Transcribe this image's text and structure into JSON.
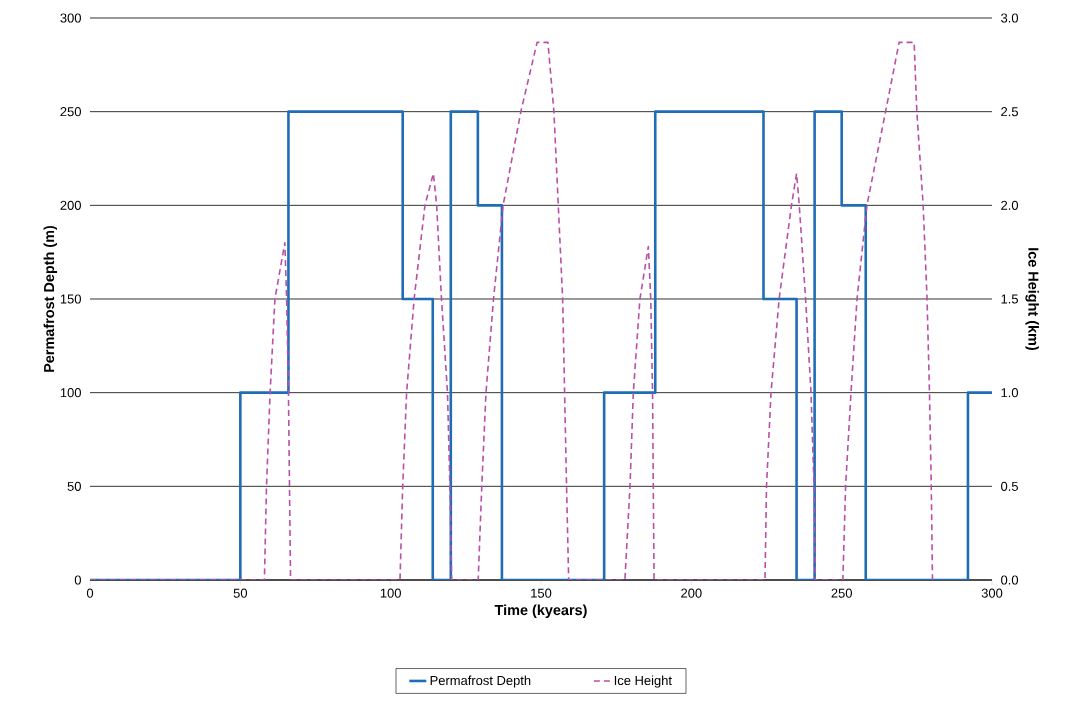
{
  "chart_data": {
    "type": "line",
    "xlabel": "Time (kyears)",
    "ylabel": "Permafrost Depth (m)",
    "y2label": "Ice Height (km)",
    "xlim": [
      0,
      300
    ],
    "xticks": [
      0,
      50,
      100,
      150,
      200,
      250,
      300
    ],
    "ylim": [
      0,
      300
    ],
    "yticks": [
      0,
      50,
      100,
      150,
      200,
      250,
      300
    ],
    "y2lim": [
      0,
      3
    ],
    "y2ticks": [
      {
        "value": 0,
        "label": "0.0"
      },
      {
        "value": 0.5,
        "label": "0.5"
      },
      {
        "value": 1,
        "label": "1.0"
      },
      {
        "value": 1.5,
        "label": "1.5"
      },
      {
        "value": 2,
        "label": "2.0"
      },
      {
        "value": 2.5,
        "label": "2.5"
      },
      {
        "value": 3,
        "label": "3.0"
      }
    ],
    "grid": "y",
    "legend": "bottom",
    "marker": "none",
    "series": [
      {
        "name": "Permafrost Depth",
        "type": "step",
        "color": "#1f6db5",
        "line_style": "solid",
        "x": [
          0,
          50,
          66,
          104,
          114,
          120,
          129,
          137,
          171,
          188,
          224,
          235,
          241,
          250,
          258,
          292,
          300
        ],
        "values": [
          0,
          100,
          250,
          150,
          0,
          250,
          200,
          0,
          100,
          250,
          150,
          0,
          250,
          200,
          0,
          100,
          100
        ]
      },
      {
        "name": "Ice Height",
        "axis": "y2",
        "color": "#b94fa6",
        "line_style": "dashed",
        "x": [
          0,
          58,
          58.7,
          59.9,
          61.5,
          64.8,
          65.4,
          66,
          66.7,
          103.1,
          104,
          105.3,
          107.8,
          111.4,
          114.2,
          115.3,
          116.9,
          118.9,
          119.7,
          120.3,
          129.1,
          130.3,
          131.7,
          134.2,
          137.4,
          143.3,
          148.7,
          152.3,
          154.3,
          157.2,
          158.5,
          159.2,
          177.9,
          179.6,
          180.7,
          182.9,
          185.7,
          186.5,
          187.1,
          187.6,
          224.5,
          225,
          226.5,
          229.2,
          233.3,
          235,
          235.9,
          238,
          239.8,
          240.8,
          241.2,
          250.4,
          251.3,
          253.1,
          255.1,
          258.4,
          264.6,
          269.1,
          274.1,
          275,
          277.1,
          278.4,
          279.2,
          279.8,
          280.2
        ],
        "values": [
          0,
          0,
          0.5,
          1.0,
          1.5,
          1.8,
          1.5,
          1.0,
          0,
          0,
          0.5,
          1.0,
          1.5,
          2.0,
          2.17,
          2.0,
          1.5,
          1.0,
          0.5,
          0,
          0,
          0.5,
          1.0,
          1.5,
          2.0,
          2.5,
          2.87,
          2.87,
          2.5,
          1.5,
          0.5,
          0,
          0,
          0.5,
          1.0,
          1.5,
          1.78,
          1.5,
          1.0,
          0,
          0,
          0.5,
          1.0,
          1.5,
          2.0,
          2.17,
          2.0,
          1.5,
          1.0,
          0.5,
          0,
          0,
          0.5,
          1.0,
          1.5,
          2.0,
          2.5,
          2.87,
          2.87,
          2.5,
          2.0,
          1.5,
          1.0,
          0.5,
          0
        ]
      }
    ]
  }
}
